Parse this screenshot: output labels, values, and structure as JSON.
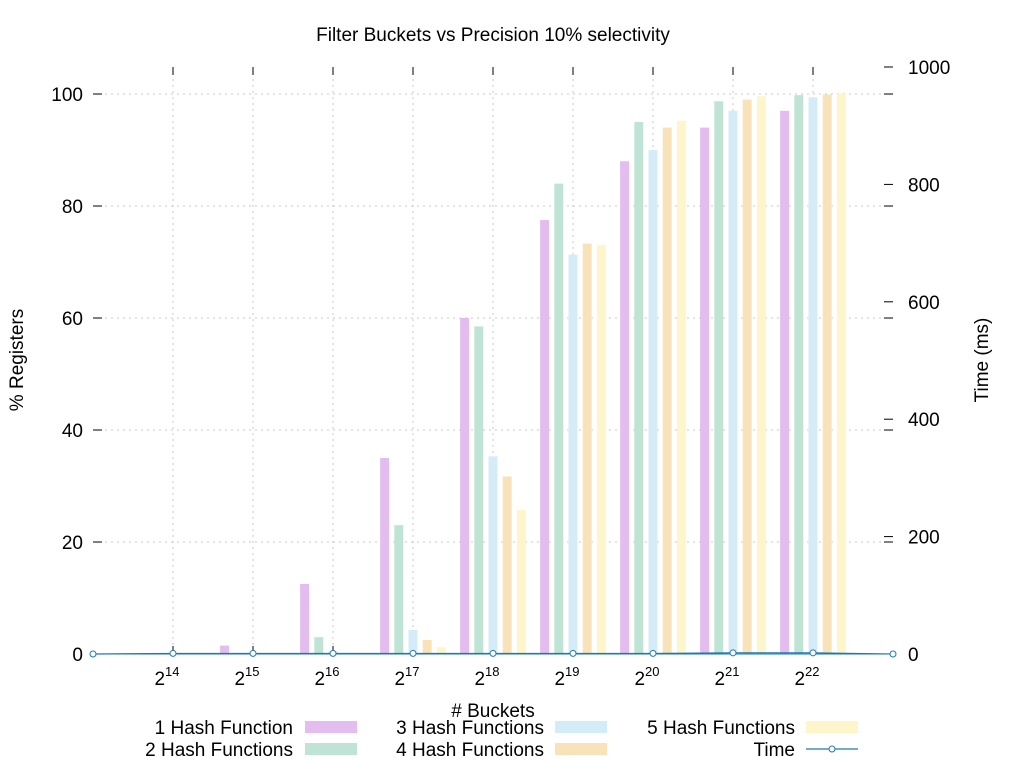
{
  "chart_data": {
    "type": "bar",
    "title": "Filter Buckets vs Precision 10% selectivity",
    "xlabel": "# Buckets",
    "ylabel": "% Registers",
    "y2label": "Time (ms)",
    "categories": [
      {
        "base": "2",
        "exp": "14"
      },
      {
        "base": "2",
        "exp": "15"
      },
      {
        "base": "2",
        "exp": "16"
      },
      {
        "base": "2",
        "exp": "17"
      },
      {
        "base": "2",
        "exp": "18"
      },
      {
        "base": "2",
        "exp": "19"
      },
      {
        "base": "2",
        "exp": "20"
      },
      {
        "base": "2",
        "exp": "21"
      },
      {
        "base": "2",
        "exp": "22"
      }
    ],
    "ylim": [
      0,
      105
    ],
    "yticks": [
      0,
      20,
      40,
      60,
      80,
      100
    ],
    "y2lim": [
      0,
      1000
    ],
    "y2ticks": [
      0,
      200,
      400,
      600,
      800,
      1000
    ],
    "grid": true,
    "legend_position": "bottom",
    "series": [
      {
        "name": "1 Hash Function",
        "color": "#e3bdf0",
        "values": [
          0.1,
          1.5,
          12.5,
          35,
          60,
          77.5,
          88,
          94,
          97
        ]
      },
      {
        "name": "2 Hash Functions",
        "color": "#bfe3d4",
        "values": [
          0,
          0.2,
          3,
          23,
          58.5,
          84,
          95,
          98.7,
          99.8
        ]
      },
      {
        "name": "3 Hash Functions",
        "color": "#d4ecf8",
        "values": [
          0,
          0,
          0.5,
          4.3,
          35.3,
          71.3,
          90,
          97,
          99.4
        ]
      },
      {
        "name": "4 Hash Functions",
        "color": "#f8e3b9",
        "values": [
          0,
          0,
          0.1,
          2.5,
          31.7,
          73.3,
          94,
          99,
          99.9
        ]
      },
      {
        "name": "5 Hash Functions",
        "color": "#fdf6cb",
        "values": [
          0,
          0,
          0,
          1.2,
          25.7,
          73,
          95.2,
          99.6,
          100
        ]
      }
    ],
    "line_series": {
      "name": "Time",
      "color": "#1f77b4",
      "axis": "y2",
      "x_positions": [
        -1,
        0,
        1,
        2,
        3,
        4,
        5,
        6,
        7,
        8,
        9
      ],
      "values": [
        0,
        1,
        1,
        1,
        1,
        1,
        1,
        1,
        2,
        2,
        0
      ]
    }
  }
}
